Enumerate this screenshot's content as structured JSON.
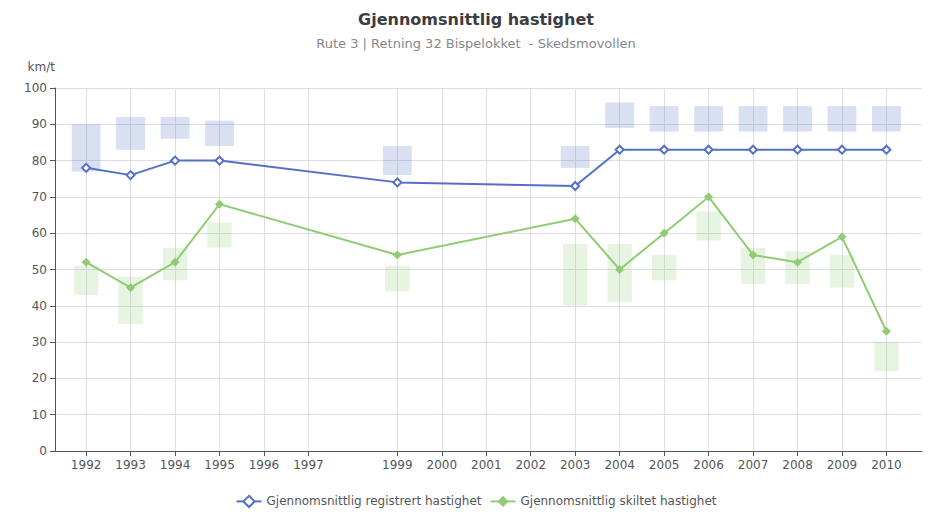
{
  "chart_data": {
    "type": "line",
    "title": "Gjennomsnittlig hastighet",
    "subtitle": "Rute 3 | Retning 32 Bispelokket  - Skedsmovollen",
    "ylabel": "km/t",
    "x": [
      1992,
      1993,
      1994,
      1995,
      1999,
      2003,
      2004,
      2005,
      2006,
      2007,
      2008,
      2009,
      2010
    ],
    "series": [
      {
        "name": "Gjennomsnittlig registrert hastighet",
        "color": "#5470c6",
        "marker": "diamond-open",
        "values": [
          78,
          76,
          80,
          80,
          74,
          73,
          83,
          83,
          83,
          83,
          83,
          83,
          83
        ],
        "low": [
          77,
          83,
          86,
          84,
          76,
          78,
          89,
          88,
          88,
          88,
          88,
          88,
          88
        ],
        "high": [
          90,
          92,
          92,
          91,
          84,
          84,
          96,
          95,
          95,
          95,
          95,
          95,
          95
        ]
      },
      {
        "name": "Gjennomsnittlig skiltet hastighet",
        "color": "#91cc75",
        "marker": "diamond",
        "values": [
          52,
          45,
          52,
          68,
          54,
          64,
          50,
          60,
          70,
          54,
          52,
          59,
          33
        ],
        "low": [
          43,
          35,
          47,
          56,
          44,
          40,
          41,
          47,
          58,
          46,
          46,
          45,
          22
        ],
        "high": [
          51,
          48,
          56,
          63,
          51,
          57,
          57,
          54,
          66,
          56,
          55,
          54,
          30
        ]
      }
    ],
    "xlim": [
      1991.3,
      2010.8
    ],
    "xticks": [
      1992,
      1993,
      1994,
      1995,
      1996,
      1997,
      1999,
      2000,
      2001,
      2002,
      2003,
      2004,
      2005,
      2006,
      2007,
      2008,
      2009,
      2010
    ],
    "ylim": [
      0,
      100
    ],
    "yticks": [
      0,
      10,
      20,
      30,
      40,
      50,
      60,
      70,
      80,
      90,
      100
    ],
    "grid": true,
    "legend": "bottom"
  }
}
